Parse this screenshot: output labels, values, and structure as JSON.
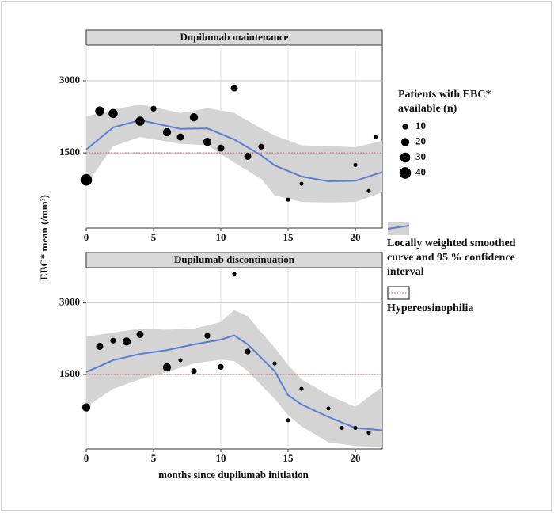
{
  "chart_data": [
    {
      "type": "scatter",
      "title": "Dupilumab maintenance",
      "x": [
        0,
        1,
        2,
        4,
        5,
        6,
        7,
        8,
        9,
        10,
        11,
        12,
        13,
        15,
        16,
        20,
        21,
        21.5
      ],
      "values": [
        940,
        2370,
        2320,
        2160,
        2420,
        1930,
        1830,
        2240,
        1730,
        1600,
        2850,
        1430,
        1630,
        530,
        860,
        1250,
        710,
        1830
      ],
      "sizes": [
        40,
        25,
        25,
        25,
        10,
        20,
        15,
        20,
        20,
        15,
        15,
        15,
        10,
        5,
        5,
        5,
        5,
        5
      ],
      "color": "#000000",
      "curve": {
        "x": [
          0,
          2,
          4,
          7,
          9,
          11,
          13,
          14,
          16,
          18,
          20,
          22
        ],
        "values": [
          1570,
          2030,
          2180,
          2000,
          2010,
          1780,
          1450,
          1240,
          1010,
          910,
          920,
          1100
        ],
        "lower": [
          840,
          1640,
          1830,
          1690,
          1660,
          1300,
          960,
          620,
          480,
          470,
          480,
          680
        ],
        "upper": [
          2260,
          2400,
          2510,
          2330,
          2430,
          2330,
          2010,
          1860,
          1660,
          1640,
          1620,
          1750
        ],
        "color": "#5b7fd0",
        "band_color": "#d4d4d4"
      },
      "reference_line": {
        "value": 1500,
        "color": "#c05050"
      },
      "xlim": [
        0,
        22
      ],
      "xticks": [
        0,
        5,
        10,
        15,
        20
      ],
      "ylim": [
        -60,
        3740
      ],
      "yticks": [
        1500,
        3000
      ],
      "grid": true
    },
    {
      "type": "scatter",
      "title": "Dupilumab discontinuation",
      "x": [
        0,
        1,
        2,
        3,
        4,
        6,
        7,
        8,
        9,
        10,
        11,
        12,
        14,
        15,
        16,
        18,
        19,
        20,
        21
      ],
      "values": [
        810,
        2090,
        2210,
        2190,
        2340,
        1650,
        1800,
        1570,
        2310,
        1660,
        3610,
        1980,
        1730,
        540,
        1200,
        790,
        380,
        380,
        280
      ],
      "sizes": [
        20,
        15,
        10,
        20,
        15,
        20,
        5,
        10,
        10,
        10,
        5,
        10,
        5,
        5,
        5,
        5,
        5,
        5,
        5
      ],
      "color": "#000000",
      "curve": {
        "x": [
          0,
          2,
          4,
          6,
          8,
          10,
          11,
          12,
          14,
          15,
          16,
          18,
          20,
          22
        ],
        "values": [
          1550,
          1800,
          1930,
          2010,
          2130,
          2230,
          2320,
          2130,
          1570,
          1070,
          870,
          610,
          380,
          330
        ],
        "lower": [
          820,
          1200,
          1400,
          1550,
          1730,
          1810,
          1780,
          1570,
          990,
          650,
          410,
          80,
          0,
          -30
        ],
        "upper": [
          2290,
          2380,
          2460,
          2440,
          2460,
          2600,
          2850,
          2720,
          2060,
          1700,
          1400,
          1070,
          820,
          1240
        ],
        "color": "#5b7fd0",
        "band_color": "#d4d4d4"
      },
      "reference_line": {
        "value": 1500,
        "color": "#c05050"
      },
      "xlim": [
        0,
        22
      ],
      "xticks": [
        0,
        5,
        10,
        15,
        20
      ],
      "ylim": [
        -60,
        3740
      ],
      "yticks": [
        1500,
        3000
      ],
      "grid": true
    }
  ],
  "x_label": "months since dupilumab initiation",
  "y_label": "EBC* mean (/mm³)",
  "legend": {
    "size_title": "Patients with EBC* available (n)",
    "sizes": [
      10,
      20,
      30,
      40
    ],
    "curve_label": "Locally weighted smoothed curve and 95 % confidence interval",
    "reference_label": "Hypereosinophilia"
  }
}
